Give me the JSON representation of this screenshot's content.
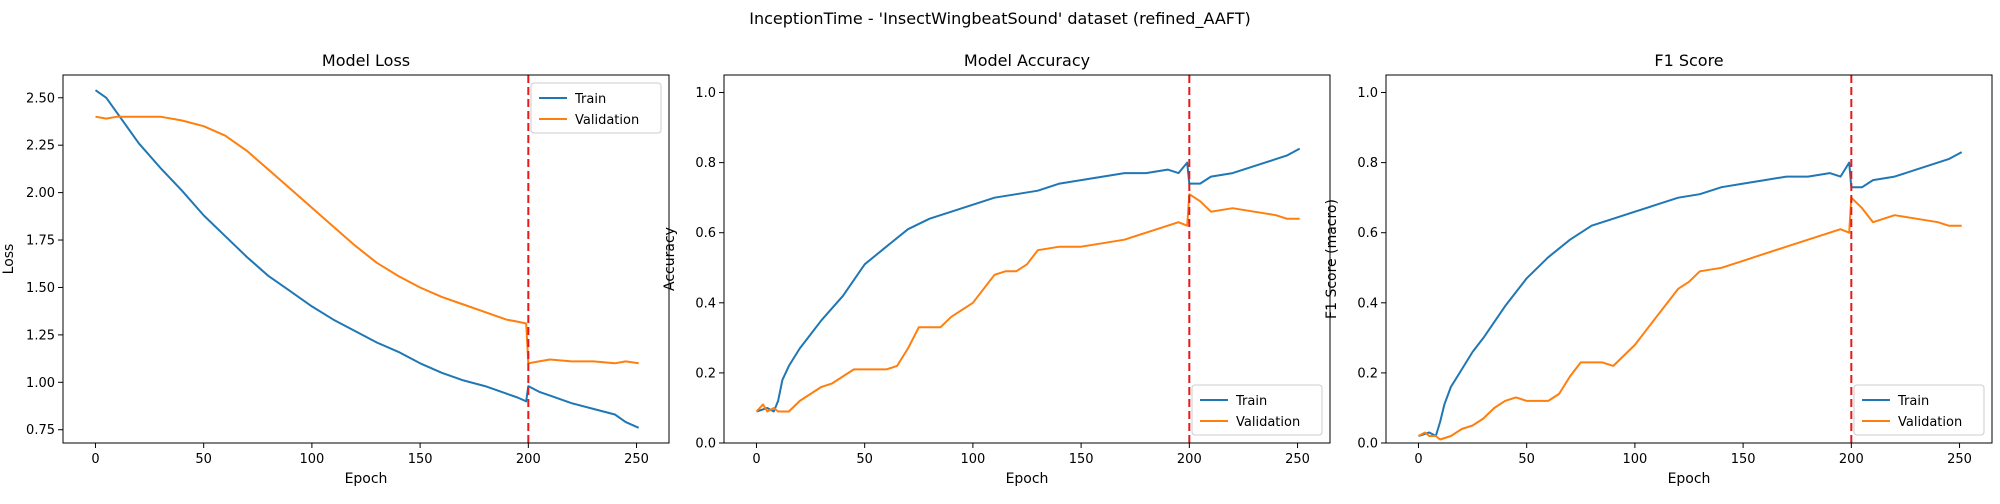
{
  "figure": {
    "suptitle": "InceptionTime - 'InsectWingbeatSound' dataset (refined_AAFT)"
  },
  "colors": {
    "train": "#1f77b4",
    "validation": "#ff7f0e",
    "marker": "#e41a1c"
  },
  "chart_data": [
    {
      "type": "line",
      "title": "Model Loss",
      "xlabel": "Epoch",
      "ylabel": "Loss",
      "xlim": [
        -15,
        265
      ],
      "ylim": [
        0.68,
        2.62
      ],
      "xticks": [
        0,
        50,
        100,
        150,
        200,
        250
      ],
      "yticks": [
        0.75,
        1.0,
        1.25,
        1.5,
        1.75,
        2.0,
        2.25,
        2.5
      ],
      "yfmt": 2,
      "vline_x": 200,
      "legend_loc": "upper right",
      "series": [
        {
          "name": "Train",
          "x": [
            0,
            5,
            10,
            20,
            30,
            40,
            50,
            60,
            70,
            80,
            90,
            100,
            110,
            120,
            130,
            140,
            150,
            160,
            170,
            180,
            190,
            195,
            199,
            200,
            205,
            210,
            220,
            230,
            240,
            245,
            251
          ],
          "y": [
            2.54,
            2.5,
            2.42,
            2.26,
            2.13,
            2.01,
            1.88,
            1.77,
            1.66,
            1.56,
            1.48,
            1.4,
            1.33,
            1.27,
            1.21,
            1.16,
            1.1,
            1.05,
            1.01,
            0.98,
            0.94,
            0.92,
            0.9,
            0.98,
            0.95,
            0.93,
            0.89,
            0.86,
            0.83,
            0.79,
            0.76
          ]
        },
        {
          "name": "Validation",
          "x": [
            0,
            5,
            10,
            20,
            30,
            40,
            50,
            60,
            70,
            80,
            90,
            100,
            110,
            120,
            130,
            140,
            150,
            160,
            170,
            180,
            190,
            195,
            199,
            200,
            205,
            210,
            220,
            230,
            240,
            245,
            251
          ],
          "y": [
            2.4,
            2.39,
            2.4,
            2.4,
            2.4,
            2.38,
            2.35,
            2.3,
            2.22,
            2.12,
            2.02,
            1.92,
            1.82,
            1.72,
            1.63,
            1.56,
            1.5,
            1.45,
            1.41,
            1.37,
            1.33,
            1.32,
            1.31,
            1.1,
            1.11,
            1.12,
            1.11,
            1.11,
            1.1,
            1.11,
            1.1
          ]
        }
      ]
    },
    {
      "type": "line",
      "title": "Model Accuracy",
      "xlabel": "Epoch",
      "ylabel": "Accuracy",
      "xlim": [
        -15,
        265
      ],
      "ylim": [
        0.0,
        1.05
      ],
      "xticks": [
        0,
        50,
        100,
        150,
        200,
        250
      ],
      "yticks": [
        0.0,
        0.2,
        0.4,
        0.6,
        0.8,
        1.0
      ],
      "yfmt": 1,
      "vline_x": 200,
      "legend_loc": "lower right",
      "series": [
        {
          "name": "Train",
          "x": [
            0,
            5,
            8,
            10,
            12,
            15,
            20,
            25,
            30,
            40,
            50,
            60,
            70,
            80,
            90,
            100,
            110,
            120,
            130,
            140,
            150,
            160,
            170,
            180,
            190,
            195,
            199,
            200,
            205,
            210,
            220,
            230,
            240,
            245,
            251
          ],
          "y": [
            0.09,
            0.1,
            0.09,
            0.12,
            0.18,
            0.22,
            0.27,
            0.31,
            0.35,
            0.42,
            0.51,
            0.56,
            0.61,
            0.64,
            0.66,
            0.68,
            0.7,
            0.71,
            0.72,
            0.74,
            0.75,
            0.76,
            0.77,
            0.77,
            0.78,
            0.77,
            0.8,
            0.74,
            0.74,
            0.76,
            0.77,
            0.79,
            0.81,
            0.82,
            0.84
          ]
        },
        {
          "name": "Validation",
          "x": [
            0,
            3,
            5,
            8,
            10,
            15,
            20,
            25,
            30,
            35,
            40,
            45,
            50,
            55,
            60,
            65,
            70,
            75,
            80,
            85,
            90,
            95,
            100,
            105,
            110,
            115,
            120,
            125,
            130,
            140,
            150,
            160,
            170,
            180,
            190,
            195,
            199,
            200,
            205,
            210,
            220,
            230,
            240,
            245,
            251
          ],
          "y": [
            0.09,
            0.11,
            0.09,
            0.1,
            0.09,
            0.09,
            0.12,
            0.14,
            0.16,
            0.17,
            0.19,
            0.21,
            0.21,
            0.21,
            0.21,
            0.22,
            0.27,
            0.33,
            0.33,
            0.33,
            0.36,
            0.38,
            0.4,
            0.44,
            0.48,
            0.49,
            0.49,
            0.51,
            0.55,
            0.56,
            0.56,
            0.57,
            0.58,
            0.6,
            0.62,
            0.63,
            0.62,
            0.71,
            0.69,
            0.66,
            0.67,
            0.66,
            0.65,
            0.64,
            0.64
          ]
        }
      ]
    },
    {
      "type": "line",
      "title": "F1 Score",
      "xlabel": "Epoch",
      "ylabel": "F1 Score (macro)",
      "xlim": [
        -15,
        265
      ],
      "ylim": [
        0.0,
        1.05
      ],
      "xticks": [
        0,
        50,
        100,
        150,
        200,
        250
      ],
      "yticks": [
        0.0,
        0.2,
        0.4,
        0.6,
        0.8,
        1.0
      ],
      "yfmt": 1,
      "vline_x": 200,
      "legend_loc": "lower right",
      "series": [
        {
          "name": "Train",
          "x": [
            0,
            5,
            8,
            10,
            12,
            15,
            20,
            25,
            30,
            40,
            50,
            60,
            70,
            80,
            90,
            100,
            110,
            120,
            130,
            140,
            150,
            160,
            170,
            180,
            190,
            195,
            199,
            200,
            205,
            210,
            220,
            230,
            240,
            245,
            251
          ],
          "y": [
            0.02,
            0.03,
            0.02,
            0.06,
            0.11,
            0.16,
            0.21,
            0.26,
            0.3,
            0.39,
            0.47,
            0.53,
            0.58,
            0.62,
            0.64,
            0.66,
            0.68,
            0.7,
            0.71,
            0.73,
            0.74,
            0.75,
            0.76,
            0.76,
            0.77,
            0.76,
            0.8,
            0.73,
            0.73,
            0.75,
            0.76,
            0.78,
            0.8,
            0.81,
            0.83
          ]
        },
        {
          "name": "Validation",
          "x": [
            0,
            3,
            5,
            8,
            10,
            15,
            20,
            25,
            30,
            35,
            40,
            45,
            50,
            55,
            60,
            65,
            70,
            75,
            80,
            85,
            90,
            95,
            100,
            105,
            110,
            115,
            120,
            125,
            130,
            140,
            150,
            160,
            170,
            180,
            190,
            195,
            199,
            200,
            205,
            210,
            220,
            230,
            240,
            245,
            251
          ],
          "y": [
            0.02,
            0.03,
            0.02,
            0.02,
            0.01,
            0.02,
            0.04,
            0.05,
            0.07,
            0.1,
            0.12,
            0.13,
            0.12,
            0.12,
            0.12,
            0.14,
            0.19,
            0.23,
            0.23,
            0.23,
            0.22,
            0.25,
            0.28,
            0.32,
            0.36,
            0.4,
            0.44,
            0.46,
            0.49,
            0.5,
            0.52,
            0.54,
            0.56,
            0.58,
            0.6,
            0.61,
            0.6,
            0.7,
            0.67,
            0.63,
            0.65,
            0.64,
            0.63,
            0.62,
            0.62
          ]
        }
      ]
    }
  ]
}
